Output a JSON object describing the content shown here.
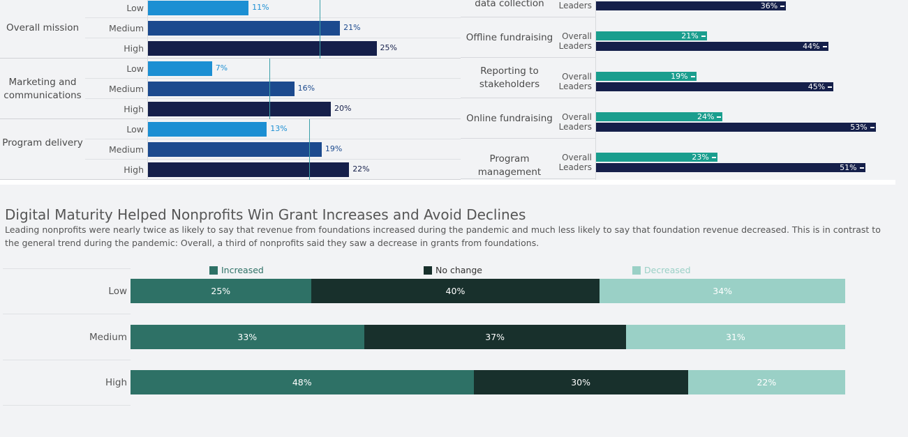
{
  "left_chart": {
    "groups": [
      {
        "label": "Overall mission",
        "rows": [
          {
            "level": "Low",
            "value": 11,
            "label": "11%"
          },
          {
            "level": "Medium",
            "value": 21,
            "label": "21%"
          },
          {
            "level": "High",
            "value": 25,
            "label": "25%"
          }
        ]
      },
      {
        "label": "Marketing and communications",
        "rows": [
          {
            "level": "Low",
            "value": 7,
            "label": "7%"
          },
          {
            "level": "Medium",
            "value": 16,
            "label": "16%"
          },
          {
            "level": "High",
            "value": 20,
            "label": "20%"
          }
        ]
      },
      {
        "label": "Program delivery",
        "rows": [
          {
            "level": "Low",
            "value": 13,
            "label": "13%"
          },
          {
            "level": "Medium",
            "value": 19,
            "label": "19%"
          },
          {
            "level": "High",
            "value": 22,
            "label": "22%"
          }
        ]
      }
    ],
    "reference_values": [
      18.8,
      13.3,
      17.6
    ],
    "colors": {
      "Low": "#1c8fd3",
      "Medium": "#1c4a8e",
      "High": "#151f4a"
    }
  },
  "right_chart": {
    "rows": [
      {
        "category": "Measurement and data collection",
        "overall": null,
        "leaders": 36,
        "overall_label": "",
        "leaders_label": "36%"
      },
      {
        "category": "Offline fundraising",
        "overall": 21,
        "leaders": 44,
        "overall_label": "21%",
        "leaders_label": "44%"
      },
      {
        "category": "Reporting to stakeholders",
        "overall": 19,
        "leaders": 45,
        "overall_label": "19%",
        "leaders_label": "45%"
      },
      {
        "category": "Online fundraising",
        "overall": 24,
        "leaders": 53,
        "overall_label": "24%",
        "leaders_label": "53%"
      },
      {
        "category": "Program management",
        "overall": 23,
        "leaders": 51,
        "overall_label": "23%",
        "leaders_label": "51%"
      }
    ],
    "series_labels": {
      "overall": "Overall",
      "leaders": "Leaders"
    },
    "colors": {
      "overall": "#1a9e8e",
      "leaders": "#151f4a"
    }
  },
  "section": {
    "title": "Digital Maturity Helped Nonprofits Win Grant Increases and Avoid Declines",
    "subtitle": "Leading nonprofits were nearly twice as likely to say that revenue from foundations increased during the pandemic and much less likely to say that foundation revenue decreased. This is in contrast to the general trend during the pandemic: Overall, a third of nonprofits said they saw a decrease in grants from foundations."
  },
  "chart_data": {
    "type": "bar",
    "stacked": true,
    "orientation": "horizontal",
    "categories": [
      "Low",
      "Medium",
      "High"
    ],
    "series": [
      {
        "name": "Increased",
        "values": [
          25,
          33,
          48
        ],
        "labels": [
          "25%",
          "33%",
          "48%"
        ],
        "color": "#2e7166",
        "text_color": "#ffffff"
      },
      {
        "name": "No change",
        "values": [
          40,
          37,
          30
        ],
        "labels": [
          "40%",
          "37%",
          "30%"
        ],
        "color": "#18302c",
        "text_color": "#ffffff"
      },
      {
        "name": "Decreased",
        "values": [
          34,
          31,
          22
        ],
        "labels": [
          "34%",
          "31%",
          "22%"
        ],
        "color": "#9ad0c6",
        "text_color": "#ffffff"
      }
    ],
    "legend_position": "top",
    "legend_text_colors": [
      "#2e7166",
      "#333333",
      "#9ad0c6"
    ]
  }
}
